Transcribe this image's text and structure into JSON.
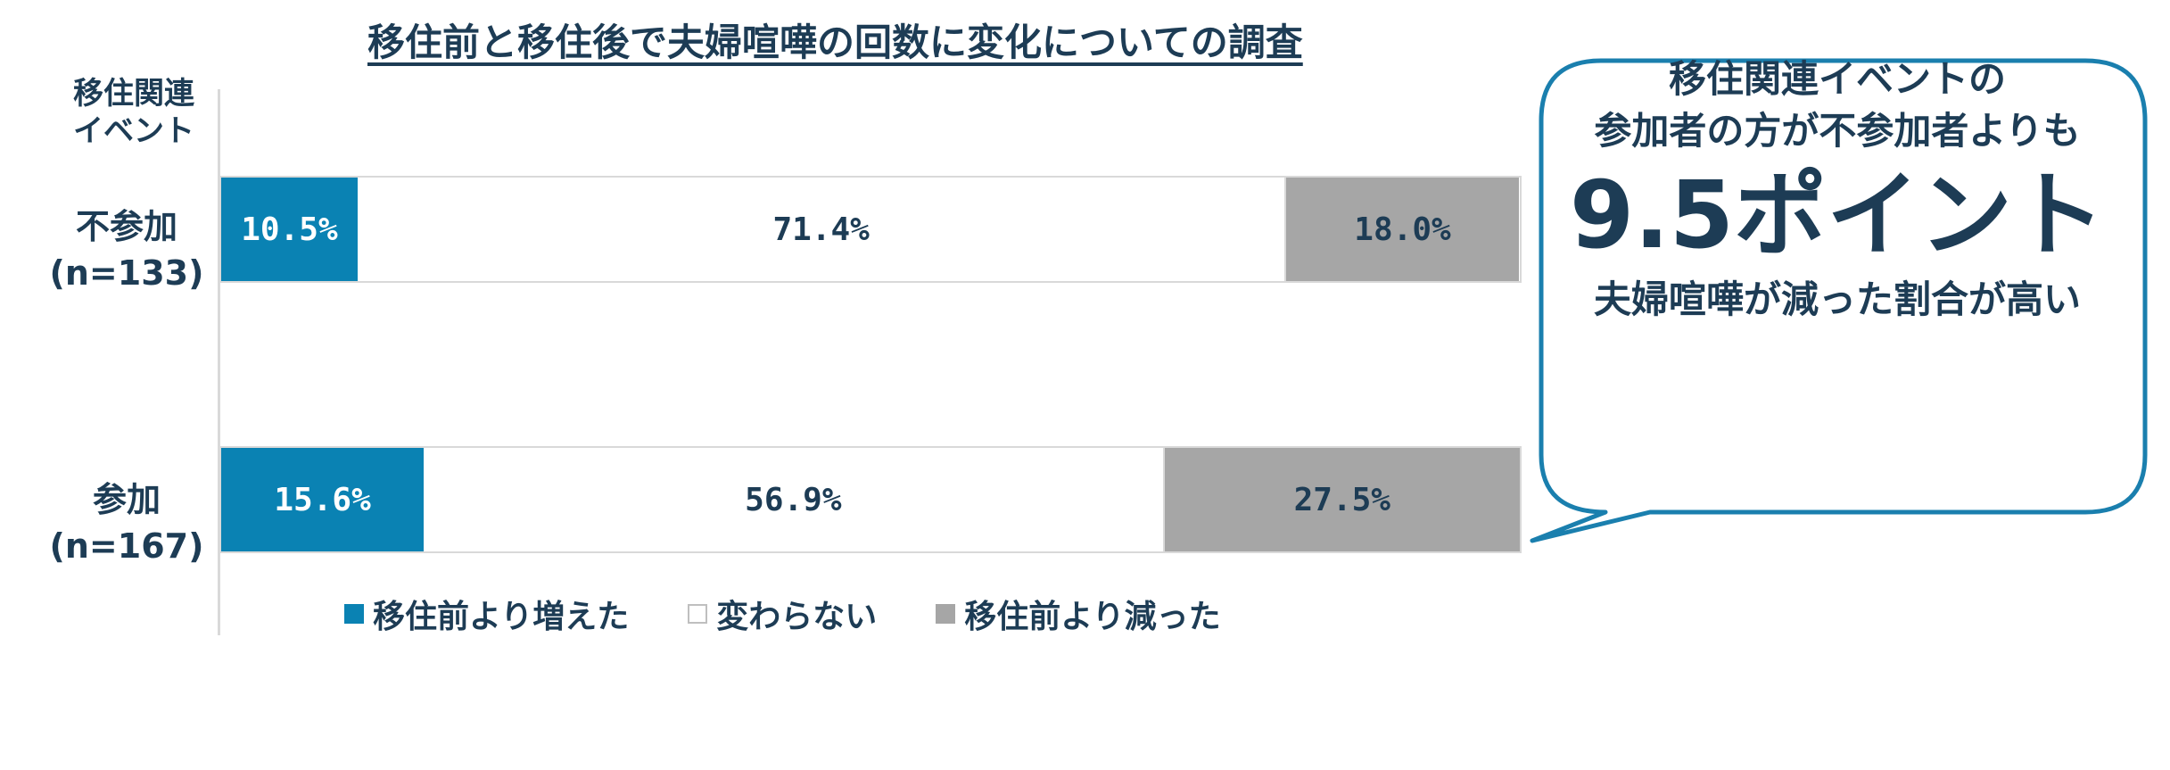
{
  "chart_data": {
    "type": "bar",
    "orientation": "horizontal",
    "stacked": "percent",
    "title": "移住前と移住後で夫婦喧嘩の回数に変化についての調査",
    "category_axis_title": "移住関連\nイベント",
    "categories": [
      {
        "name": "不参加",
        "n": "(n=133)"
      },
      {
        "name": "参加",
        "n": "(n=167)"
      }
    ],
    "series": [
      {
        "name": "移住前より増えた",
        "color": "#0a82b3",
        "values": [
          10.5,
          15.6
        ],
        "labels": [
          "10.5%",
          "15.6%"
        ]
      },
      {
        "name": "変わらない",
        "color": "#ffffff",
        "values": [
          71.4,
          56.9
        ],
        "labels": [
          "71.4%",
          "56.9%"
        ]
      },
      {
        "name": "移住前より減った",
        "color": "#a6a6a6",
        "values": [
          18.0,
          27.5
        ],
        "labels": [
          "18.0%",
          "27.5%"
        ]
      }
    ],
    "legend_position": "bottom",
    "annotation": {
      "line1": "移住関連イベントの",
      "line2": "参加者の方が不参加者よりも",
      "highlight": "9.5ポイント",
      "line3": "夫婦喧嘩が減った割合が高い",
      "border_color": "#1a7fae"
    }
  }
}
